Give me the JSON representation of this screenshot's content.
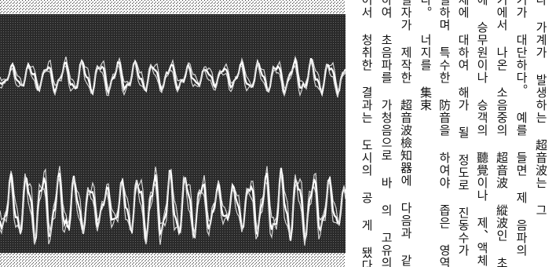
{
  "figure": {
    "name": "oscillogram photograph",
    "traces": 2
  },
  "article": {
    "columns": [
      "나 가계가 발생하는 超音波는 그",
      "기가 대단하다。 예를 들면 제 음파의 길",
      "기에서 나온 소음중의 超音波 縱波인 초음",
      "에 승무원이나 승객의 聽覺이나 제、액체및",
      "체에 대하여 해가 될 정도로 진동수가 크",
      "틸하며 특수한 防音을 하여야 좁은 영역에",
      "다。 너지를 集束",
      "필자가 제작한 超音波檢知器에 다음과 같",
      "하여 초음파를 가청음으로 바 의 고유의",
      "어서 청취한 결과는 도시의 공 게 됐다。 音壓에 의"
    ]
  }
}
